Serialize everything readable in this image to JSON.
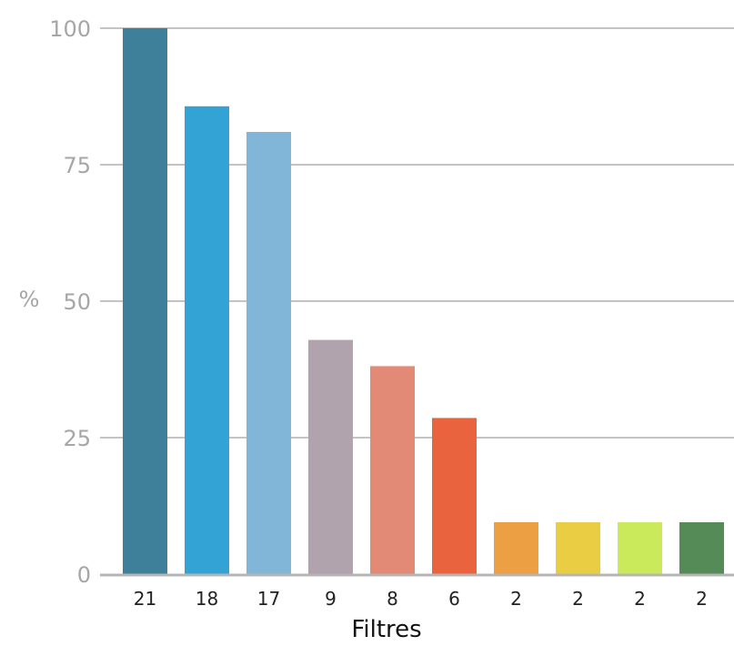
{
  "chart_data": {
    "type": "bar",
    "ylabel": "%",
    "xlabel": "Filtres",
    "ylim": [
      0,
      100
    ],
    "yticks": [
      0,
      25,
      50,
      75,
      100
    ],
    "grid": true,
    "categories": [
      "21",
      "18",
      "17",
      "9",
      "8",
      "6",
      "2",
      "2",
      "2",
      "2"
    ],
    "values": [
      100,
      85.7,
      81.0,
      42.9,
      38.1,
      28.6,
      9.5,
      9.5,
      9.5,
      9.5
    ],
    "colors": [
      "#3e7f99",
      "#33a3d6",
      "#82b6d8",
      "#b0a3ae",
      "#e38a77",
      "#ea633f",
      "#eca043",
      "#eacd43",
      "#cbea5b",
      "#558b57"
    ]
  }
}
